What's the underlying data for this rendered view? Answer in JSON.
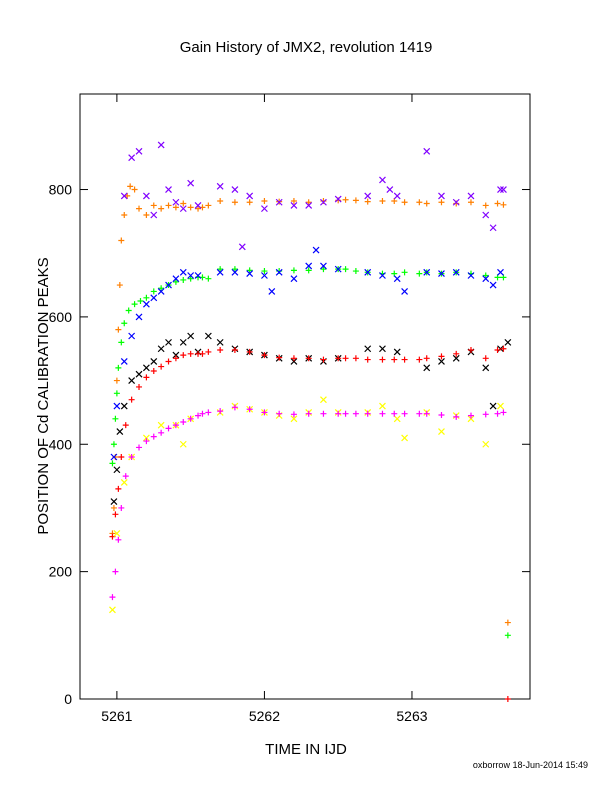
{
  "chart_data": {
    "type": "scatter",
    "title": "Gain History of JMX2, revolution 1419",
    "xlabel": "TIME IN IJD",
    "ylabel": "POSITION OF Cd CALIBRATION PEAKS",
    "xlim": [
      5260.75,
      5263.8
    ],
    "ylim": [
      0,
      950
    ],
    "xticks": [
      "5261",
      "5262",
      "5263"
    ],
    "xtick_values": [
      5261,
      5262,
      5263
    ],
    "yticks": [
      "0",
      "200",
      "400",
      "600",
      "800"
    ],
    "ytick_values": [
      0,
      200,
      400,
      600,
      800
    ],
    "grid": false,
    "legend": "none",
    "footer": "oxborrow 18-Jun-2014 15:49",
    "series": [
      {
        "marker": "+",
        "color": "#ff7f00",
        "x": [
          5260.97,
          5260.98,
          5260.99,
          5261.0,
          5261.01,
          5261.02,
          5261.03,
          5261.05,
          5261.07,
          5261.09,
          5261.12,
          5261.15,
          5261.2,
          5261.25,
          5261.3,
          5261.35,
          5261.4,
          5261.45,
          5261.5,
          5261.55,
          5261.58,
          5261.62,
          5261.7,
          5261.8,
          5261.9,
          5262.0,
          5262.1,
          5262.2,
          5262.3,
          5262.4,
          5262.5,
          5262.55,
          5262.62,
          5262.7,
          5262.8,
          5262.88,
          5262.95,
          5263.05,
          5263.1,
          5263.2,
          5263.3,
          5263.4,
          5263.5,
          5263.58,
          5263.62,
          5263.65
        ],
        "y": [
          260,
          300,
          380,
          500,
          580,
          650,
          720,
          760,
          790,
          805,
          800,
          770,
          760,
          775,
          770,
          775,
          772,
          778,
          772,
          770,
          772,
          775,
          782,
          780,
          780,
          782,
          781,
          782,
          780,
          782,
          783,
          784,
          783,
          781,
          782,
          782,
          780,
          780,
          778,
          780,
          778,
          780,
          775,
          778,
          776,
          120
        ]
      },
      {
        "marker": "x",
        "color": "#8000ff",
        "x": [
          5261.05,
          5261.1,
          5261.15,
          5261.2,
          5261.25,
          5261.3,
          5261.35,
          5261.4,
          5261.45,
          5261.5,
          5261.55,
          5261.7,
          5261.8,
          5261.85,
          5261.9,
          5262.0,
          5262.1,
          5262.2,
          5262.3,
          5262.4,
          5262.5,
          5262.7,
          5262.8,
          5262.85,
          5262.9,
          5263.1,
          5263.2,
          5263.3,
          5263.4,
          5263.5,
          5263.55,
          5263.6,
          5263.62
        ],
        "y": [
          790,
          850,
          860,
          790,
          760,
          870,
          800,
          780,
          770,
          810,
          775,
          805,
          800,
          710,
          790,
          770,
          780,
          775,
          775,
          780,
          785,
          790,
          815,
          800,
          790,
          860,
          790,
          780,
          790,
          760,
          740,
          800,
          800
        ]
      },
      {
        "marker": "+",
        "color": "#00ff00",
        "x": [
          5260.97,
          5260.98,
          5260.99,
          5261.0,
          5261.01,
          5261.03,
          5261.05,
          5261.08,
          5261.12,
          5261.16,
          5261.2,
          5261.25,
          5261.3,
          5261.35,
          5261.4,
          5261.45,
          5261.5,
          5261.55,
          5261.58,
          5261.62,
          5261.7,
          5261.8,
          5261.9,
          5262.0,
          5262.1,
          5262.2,
          5262.3,
          5262.4,
          5262.5,
          5262.55,
          5262.62,
          5262.7,
          5262.8,
          5262.88,
          5262.95,
          5263.05,
          5263.1,
          5263.2,
          5263.3,
          5263.4,
          5263.5,
          5263.58,
          5263.62,
          5263.65
        ],
        "y": [
          370,
          400,
          440,
          480,
          520,
          560,
          590,
          610,
          620,
          625,
          630,
          640,
          645,
          650,
          655,
          658,
          660,
          662,
          662,
          660,
          675,
          675,
          673,
          672,
          672,
          673,
          673,
          675,
          675,
          675,
          672,
          670,
          668,
          668,
          670,
          668,
          670,
          668,
          670,
          668,
          665,
          662,
          662,
          100
        ]
      },
      {
        "marker": "x",
        "color": "#0000ff",
        "x": [
          5260.98,
          5261.0,
          5261.05,
          5261.1,
          5261.15,
          5261.2,
          5261.25,
          5261.3,
          5261.35,
          5261.4,
          5261.45,
          5261.5,
          5261.55,
          5261.7,
          5261.8,
          5261.9,
          5262.0,
          5262.05,
          5262.1,
          5262.2,
          5262.3,
          5262.35,
          5262.4,
          5262.5,
          5262.7,
          5262.8,
          5262.9,
          5262.95,
          5263.1,
          5263.2,
          5263.3,
          5263.4,
          5263.5,
          5263.55,
          5263.6
        ],
        "y": [
          380,
          460,
          530,
          570,
          600,
          620,
          630,
          640,
          650,
          660,
          670,
          665,
          665,
          670,
          670,
          668,
          665,
          640,
          670,
          660,
          680,
          705,
          680,
          675,
          670,
          665,
          660,
          640,
          670,
          668,
          670,
          665,
          660,
          650,
          670
        ]
      },
      {
        "marker": "x",
        "color": "#000000",
        "x": [
          5260.98,
          5261.0,
          5261.02,
          5261.05,
          5261.1,
          5261.15,
          5261.2,
          5261.25,
          5261.3,
          5261.35,
          5261.4,
          5261.45,
          5261.5,
          5261.55,
          5261.62,
          5261.7,
          5261.8,
          5261.9,
          5262.0,
          5262.1,
          5262.2,
          5262.3,
          5262.4,
          5262.5,
          5262.7,
          5262.8,
          5262.9,
          5263.1,
          5263.2,
          5263.3,
          5263.4,
          5263.5,
          5263.55,
          5263.6,
          5263.65
        ],
        "y": [
          310,
          360,
          420,
          460,
          500,
          510,
          520,
          530,
          550,
          560,
          540,
          560,
          570,
          545,
          570,
          560,
          550,
          545,
          540,
          535,
          530,
          535,
          530,
          535,
          550,
          550,
          545,
          520,
          530,
          535,
          545,
          520,
          460,
          550,
          560
        ]
      },
      {
        "marker": "+",
        "color": "#ff0000",
        "x": [
          5260.97,
          5260.99,
          5261.01,
          5261.03,
          5261.06,
          5261.1,
          5261.15,
          5261.2,
          5261.25,
          5261.3,
          5261.35,
          5261.4,
          5261.45,
          5261.5,
          5261.55,
          5261.58,
          5261.62,
          5261.7,
          5261.8,
          5261.9,
          5262.0,
          5262.1,
          5262.2,
          5262.3,
          5262.4,
          5262.5,
          5262.55,
          5262.62,
          5262.7,
          5262.8,
          5262.88,
          5262.95,
          5263.05,
          5263.1,
          5263.2,
          5263.3,
          5263.4,
          5263.5,
          5263.58,
          5263.62,
          5263.65
        ],
        "y": [
          255,
          290,
          330,
          380,
          430,
          470,
          490,
          505,
          515,
          522,
          530,
          535,
          540,
          542,
          542,
          542,
          545,
          548,
          548,
          545,
          540,
          536,
          535,
          535,
          533,
          535,
          535,
          535,
          533,
          533,
          533,
          533,
          533,
          535,
          538,
          542,
          548,
          535,
          548,
          550,
          0
        ]
      },
      {
        "marker": "x",
        "color": "#ffff00",
        "x": [
          5260.97,
          5261.0,
          5261.05,
          5261.1,
          5261.2,
          5261.3,
          5261.4,
          5261.45,
          5261.5,
          5261.7,
          5261.8,
          5261.9,
          5262.0,
          5262.1,
          5262.2,
          5262.3,
          5262.4,
          5262.5,
          5262.7,
          5262.8,
          5262.9,
          5262.95,
          5263.1,
          5263.2,
          5263.3,
          5263.4,
          5263.5,
          5263.6
        ],
        "y": [
          140,
          260,
          340,
          380,
          410,
          430,
          430,
          400,
          440,
          450,
          460,
          455,
          450,
          445,
          440,
          450,
          470,
          450,
          450,
          460,
          440,
          410,
          450,
          420,
          445,
          440,
          400,
          460
        ]
      },
      {
        "marker": "+",
        "color": "#ff00ff",
        "x": [
          5260.97,
          5260.99,
          5261.01,
          5261.03,
          5261.06,
          5261.1,
          5261.15,
          5261.2,
          5261.25,
          5261.3,
          5261.35,
          5261.4,
          5261.45,
          5261.5,
          5261.55,
          5261.58,
          5261.62,
          5261.7,
          5261.8,
          5261.9,
          5262.0,
          5262.1,
          5262.2,
          5262.3,
          5262.4,
          5262.5,
          5262.55,
          5262.62,
          5262.7,
          5262.8,
          5262.88,
          5262.95,
          5263.05,
          5263.1,
          5263.2,
          5263.3,
          5263.4,
          5263.5,
          5263.58,
          5263.62
        ],
        "y": [
          160,
          200,
          250,
          300,
          350,
          380,
          395,
          405,
          412,
          418,
          425,
          430,
          435,
          440,
          445,
          448,
          450,
          452,
          458,
          455,
          450,
          448,
          447,
          448,
          448,
          448,
          448,
          448,
          448,
          448,
          448,
          448,
          448,
          448,
          446,
          443,
          445,
          447,
          448,
          450
        ]
      }
    ]
  }
}
